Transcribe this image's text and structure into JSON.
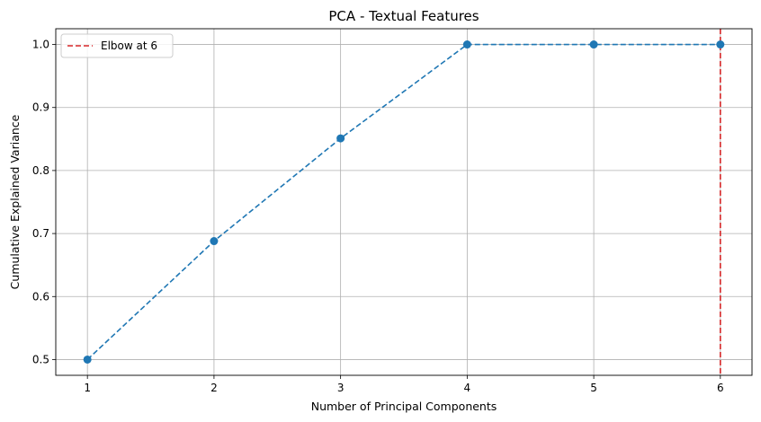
{
  "chart_data": {
    "type": "line",
    "title": "PCA - Textual Features",
    "xlabel": "Number of Principal Components",
    "ylabel": "Cumulative Explained Variance",
    "x": [
      1,
      2,
      3,
      4,
      5,
      6
    ],
    "series": [
      {
        "values": [
          0.5,
          0.688,
          0.851,
          1.0,
          1.0,
          1.0
        ],
        "color": "#1f77b4",
        "line_style": "dashed",
        "marker": "circle"
      }
    ],
    "xlim": [
      0.75,
      6.25
    ],
    "ylim": [
      0.475,
      1.025
    ],
    "xticks": [
      "1",
      "2",
      "3",
      "4",
      "5",
      "6"
    ],
    "yticks": [
      "0.5",
      "0.6",
      "0.7",
      "0.8",
      "0.9",
      "1.0"
    ],
    "grid": true,
    "vline": {
      "x": 6,
      "label": "Elbow at 6",
      "color": "#d62728",
      "line_style": "dashed"
    },
    "legend": {
      "placement": "top-left",
      "entries": [
        "Elbow at 6"
      ]
    }
  }
}
